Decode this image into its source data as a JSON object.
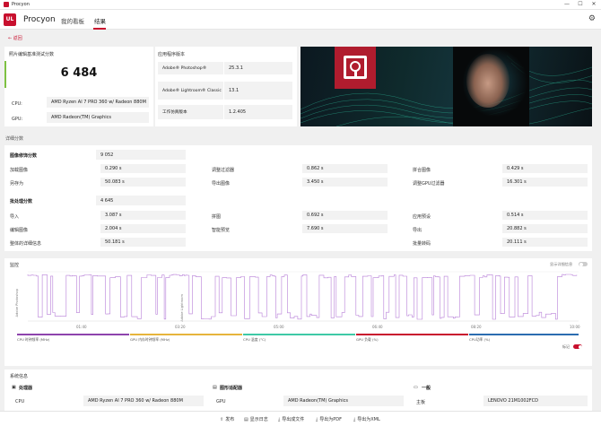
{
  "window": {
    "title": "Procyon",
    "minimize": "—",
    "maximize": "☐",
    "close": "✕"
  },
  "header": {
    "logo_text": "UL",
    "app_name": "Procyon",
    "nav": [
      {
        "label": "我的看板"
      },
      {
        "label": "结果"
      }
    ],
    "gear_icon": "gear-icon"
  },
  "back_label": "← 返回",
  "score": {
    "title": "照片编辑基准测试分数",
    "value": "6 484",
    "bar_color": "#7ec142"
  },
  "system_short": [
    {
      "label": "CPU:",
      "value": "AMD Ryzen AI 7 PRO 360 w/ Radeon 880M"
    },
    {
      "label": "GPU:",
      "value": "AMD Radeon(TM) Graphics"
    }
  ],
  "app_versions": {
    "title": "应用程序版本",
    "items": [
      {
        "name": "Adobe® Photoshop®",
        "version": "25.3.1"
      },
      {
        "name": "Adobe® Lightroom® Classic",
        "version": "13.1"
      },
      {
        "name": "工作仿真版本",
        "version": "1.2.405"
      }
    ]
  },
  "detail": {
    "section_title": "详细分数",
    "image_retouch": {
      "label": "图像修饰分数",
      "value": "9 052",
      "rows": [
        [
          {
            "k": "加载图像",
            "v": "0.290 s"
          },
          {
            "k": "调整过滤器",
            "v": "0.862 s"
          },
          {
            "k": "拼合图像",
            "v": "0.429 s"
          }
        ],
        [
          {
            "k": "另存为",
            "v": "50.083 s"
          },
          {
            "k": "导出图像",
            "v": "3.450 s"
          },
          {
            "k": "调整GPU过滤器",
            "v": "16.301 s"
          }
        ]
      ]
    },
    "batch": {
      "label": "批处理分数",
      "value": "4 645",
      "rows": [
        [
          {
            "k": "导入",
            "v": "3.087 s"
          },
          {
            "k": "拼图",
            "v": "0.692 s"
          },
          {
            "k": "应用预设",
            "v": "0.514 s"
          }
        ],
        [
          {
            "k": "编辑图像",
            "v": "2.004 s"
          },
          {
            "k": "智能预览",
            "v": "7.690 s"
          },
          {
            "k": "导出",
            "v": "20.882 s"
          }
        ],
        [
          {
            "k": "整体的详细信息",
            "v": "50.181 s"
          },
          {
            "k": "",
            "v": ""
          },
          {
            "k": "批量转码",
            "v": "20.111 s"
          }
        ]
      ]
    }
  },
  "monitoring": {
    "title": "监控",
    "show_details_label": "显示详细信息",
    "y_axis_labels": [
      "Adobe Photoshop",
      "Adobe Lightroom"
    ],
    "x_ticks": [
      "01:40",
      "03:20",
      "05:00",
      "06:40",
      "08:20",
      "10:00"
    ],
    "line_color": "#b77fd8",
    "legend": [
      {
        "label": "CPU 时钟频率 (MHz)",
        "color": "#8e44ad"
      },
      {
        "label": "GPU 内存时钟频率 (MHz)",
        "color": "#e6b43c"
      },
      {
        "label": "CPU 温度 (°C)",
        "color": "#3ec9a6"
      },
      {
        "label": "GPU 负载 (%)",
        "color": "#c8102e"
      },
      {
        "label": "CPU功率 (%)",
        "color": "#2b6cb0"
      }
    ],
    "marker_label": "标记"
  },
  "sysinfo": {
    "title": "系统信息",
    "cols": [
      {
        "title": "处理器",
        "icon": "cpu-icon",
        "k": "CPU",
        "v": "AMD Ryzen AI 7 PRO 360 w/ Radeon 880M"
      },
      {
        "title": "图形适配器",
        "icon": "gpu-icon",
        "k": "GPU",
        "v": "AMD Radeon(TM) Graphics"
      },
      {
        "title": "一般",
        "icon": "computer-icon",
        "k": "主板",
        "v": "LENOVO 21M1002FCD"
      }
    ]
  },
  "bottom": [
    {
      "label": "发布",
      "icon": "share-icon"
    },
    {
      "label": "显示日志",
      "icon": "log-icon"
    },
    {
      "label": "导出成文件",
      "icon": "download-icon"
    },
    {
      "label": "导出为PDF",
      "icon": "download-icon"
    },
    {
      "label": "导出为XML",
      "icon": "download-icon"
    }
  ]
}
